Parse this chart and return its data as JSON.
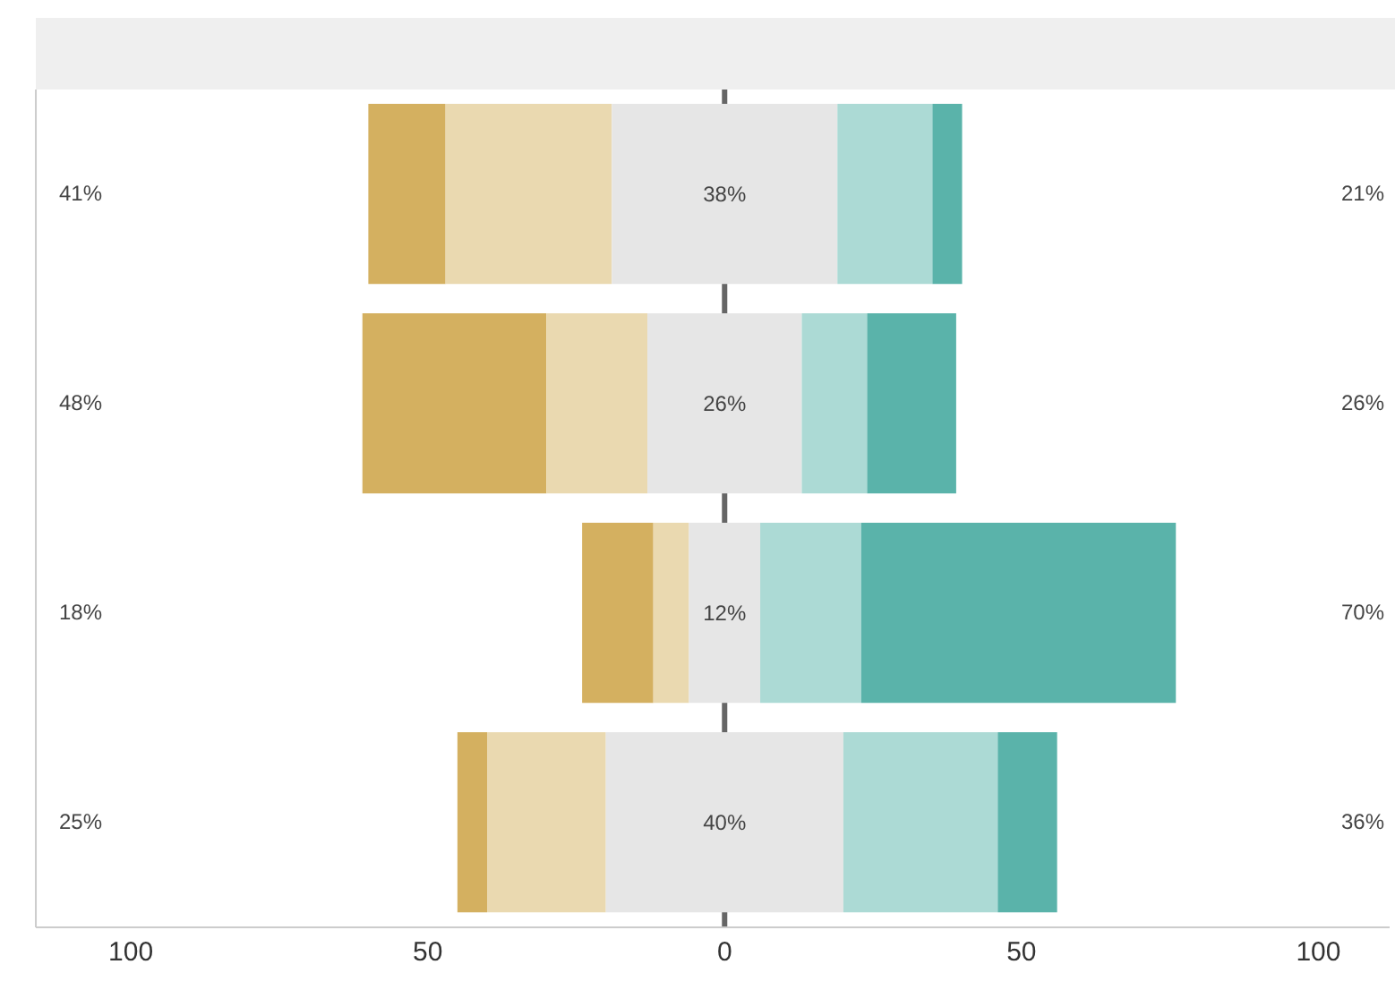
{
  "chart_data": {
    "type": "bar",
    "orientation": "horizontal",
    "categories": [
      null,
      null,
      null,
      null
    ],
    "series": [
      {
        "color": "#d4b060",
        "values": [
          13,
          31,
          12,
          5
        ],
        "base": [
          -60,
          -61,
          -24,
          -45
        ]
      },
      {
        "color": "#ead9b0",
        "values": [
          28,
          17,
          6,
          20
        ],
        "base": [
          -47,
          -30,
          -12,
          -40
        ]
      },
      {
        "color": "#e6e6e6",
        "values": [
          38,
          26,
          12,
          40
        ],
        "base": [
          -19,
          -13,
          -6,
          -20
        ],
        "value_labels": [
          "38%",
          "26%",
          "12%",
          "40%"
        ]
      },
      {
        "color": "#acdad5",
        "values": [
          16,
          11,
          17,
          26
        ],
        "base": [
          19,
          13,
          6,
          20
        ]
      },
      {
        "color": "#5ab3aa",
        "values": [
          5,
          15,
          53,
          10
        ],
        "base": [
          35,
          24,
          23,
          46
        ]
      }
    ],
    "xlim": [
      -116,
      112
    ],
    "xticks": [
      {
        "value": -100,
        "label": "100"
      },
      {
        "value": -50,
        "label": "50"
      },
      0,
      50,
      100
    ],
    "ref_lines": [
      {
        "axis": "x",
        "value": 0,
        "color": "#666666"
      }
    ],
    "annotations": [
      "41%",
      "21%",
      "48%",
      "26%",
      "18%",
      "70%",
      "25%",
      "36%"
    ],
    "grid": false,
    "legend": false
  }
}
